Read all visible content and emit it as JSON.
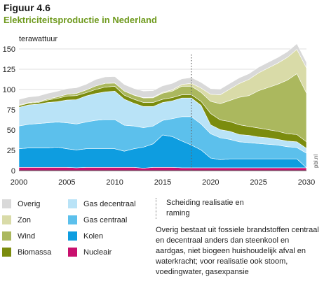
{
  "figure": {
    "number": "Figuur 4.6",
    "title": "Elektriciteitsproductie in Nederland"
  },
  "chart_data": {
    "type": "area",
    "stacked": true,
    "ylabel": "terawattuur",
    "xlim": [
      2000,
      2030
    ],
    "ylim": [
      0,
      150
    ],
    "yticks": [
      0,
      25,
      50,
      75,
      100,
      125,
      150
    ],
    "xticks": [
      2000,
      2005,
      2010,
      2015,
      2020,
      2025,
      2030
    ],
    "x": [
      2000,
      2001,
      2002,
      2003,
      2004,
      2005,
      2006,
      2007,
      2008,
      2009,
      2010,
      2011,
      2012,
      2013,
      2014,
      2015,
      2016,
      2017,
      2018,
      2019,
      2020,
      2021,
      2022,
      2023,
      2024,
      2025,
      2026,
      2027,
      2028,
      2029,
      2030
    ],
    "separator_year": 2018,
    "source_tag": "pbl.nl",
    "series": [
      {
        "name": "Nucleair",
        "color": "#c8106e",
        "values": [
          4,
          4,
          4,
          4,
          4,
          4,
          3.5,
          4,
          4,
          4,
          4,
          4,
          4,
          3,
          4,
          4,
          4,
          3.5,
          3.5,
          3.5,
          3.5,
          3.5,
          3.5,
          3.5,
          3.5,
          3.5,
          3.5,
          3.5,
          3.5,
          3.5,
          3.5
        ]
      },
      {
        "name": "Kolen",
        "color": "#0e9de0",
        "values": [
          23,
          24,
          24,
          24,
          25,
          23,
          22,
          23,
          23,
          23,
          23,
          20,
          23,
          26,
          29,
          40,
          38,
          33,
          28,
          22,
          12,
          10,
          11,
          11,
          11,
          11,
          11,
          11,
          11,
          11,
          0
        ]
      },
      {
        "name": "Gas centraal",
        "color": "#5cc0ec",
        "values": [
          28,
          29,
          30,
          31,
          31,
          32,
          32,
          33,
          35,
          36,
          36,
          32,
          28,
          24,
          22,
          18,
          22,
          30,
          35,
          32,
          30,
          27,
          24,
          21,
          20,
          19,
          18,
          17,
          15,
          14,
          18
        ]
      },
      {
        "name": "Gas decentraal",
        "color": "#b9e3f7",
        "values": [
          23,
          24,
          24,
          25,
          25,
          28,
          30,
          32,
          33,
          34,
          35,
          32,
          28,
          26,
          24,
          22,
          22,
          23,
          23,
          23,
          11,
          10,
          10,
          9,
          9,
          8,
          8,
          7,
          7,
          7,
          6
        ]
      },
      {
        "name": "Biomassa",
        "color": "#7b8c0e",
        "values": [
          2,
          2,
          2,
          3,
          4,
          5,
          5,
          4,
          5,
          6,
          6,
          5,
          5,
          5,
          5,
          4,
          4,
          4,
          4,
          5,
          14,
          12,
          12,
          12,
          11,
          11,
          10,
          10,
          9,
          9,
          8
        ]
      },
      {
        "name": "Wind",
        "color": "#abb85e",
        "values": [
          0.8,
          0.8,
          1,
          1.3,
          1.9,
          2.1,
          2.7,
          3.4,
          4.3,
          4.6,
          4,
          5.1,
          5,
          5.6,
          5.8,
          7.5,
          8,
          10.5,
          10.5,
          11,
          15,
          20,
          26,
          34,
          38,
          46,
          52,
          58,
          66,
          75,
          60
        ]
      },
      {
        "name": "Zon",
        "color": "#d9dba8",
        "values": [
          0,
          0,
          0,
          0,
          0,
          0,
          0,
          0,
          0,
          0,
          0,
          0,
          0.3,
          0.5,
          0.8,
          1.1,
          1.6,
          2.2,
          3.7,
          5.3,
          8.6,
          11,
          14,
          17,
          20,
          22,
          24,
          26,
          28,
          30,
          31
        ]
      },
      {
        "name": "Overig",
        "color": "#d9d9d9",
        "values": [
          7,
          7,
          7,
          7,
          7,
          7,
          7,
          7,
          8,
          8,
          8,
          8,
          8,
          8,
          8,
          8,
          8,
          7,
          7,
          7,
          7,
          7,
          7,
          7,
          7,
          7,
          7,
          7,
          7,
          7,
          7
        ]
      }
    ]
  },
  "legend_left": [
    {
      "label": "Overig",
      "color": "#d9d9d9"
    },
    {
      "label": "Zon",
      "color": "#d9dba8"
    },
    {
      "label": "Wind",
      "color": "#abb85e"
    },
    {
      "label": "Biomassa",
      "color": "#7b8c0e"
    }
  ],
  "legend_mid": [
    {
      "label": "Gas decentraal",
      "color": "#b9e3f7"
    },
    {
      "label": "Gas centraal",
      "color": "#5cc0ec"
    },
    {
      "label": "Kolen",
      "color": "#0e9de0"
    },
    {
      "label": "Nucleair",
      "color": "#c8106e"
    }
  ],
  "separator_note": "Scheiding realisatie en raming",
  "footnote": "Overig bestaat uit fossiele brandstoffen centraal en decentraal anders dan steenkool en aardgas, niet biogeen huishoudelijk afval en waterkracht; voor realisatie ook stoom, voedingwater, gasexpansie"
}
